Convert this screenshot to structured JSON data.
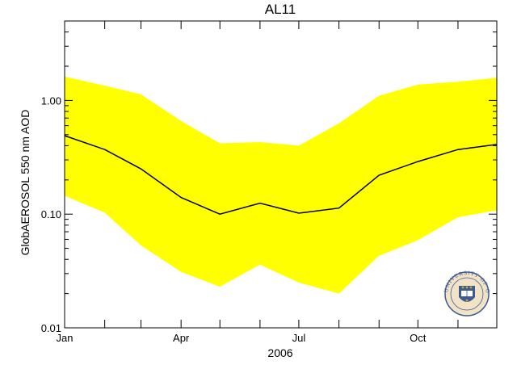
{
  "chart_data": {
    "type": "area",
    "title": "AL11",
    "xlabel": "2006",
    "ylabel": "GlobAEROSOL 550 nm AOD",
    "y_scale": "log",
    "ylim": [
      0.01,
      5
    ],
    "x_tick_labels": [
      "Jan",
      "Apr",
      "Jul",
      "Oct"
    ],
    "y_tick_labels": [
      "0.01",
      "0.10",
      "1.00"
    ],
    "x": [
      "2006-01-01",
      "2006-02-01",
      "2006-03-01",
      "2006-04-01",
      "2006-05-01",
      "2006-06-01",
      "2006-07-01",
      "2006-08-01",
      "2006-09-01",
      "2006-10-01",
      "2006-11-01",
      "2006-12-01"
    ],
    "series": [
      {
        "values": [
          0.49,
          0.37,
          0.25,
          0.14,
          0.1,
          0.125,
          0.102,
          0.113,
          0.22,
          0.29,
          0.37,
          0.41
        ]
      },
      {
        "values": [
          1.62,
          1.35,
          1.13,
          0.66,
          0.42,
          0.43,
          0.4,
          0.63,
          1.1,
          1.38,
          1.46,
          1.58
        ]
      },
      {
        "values": [
          0.145,
          0.103,
          0.053,
          0.031,
          0.023,
          0.036,
          0.025,
          0.02,
          0.043,
          0.059,
          0.094,
          0.108
        ]
      }
    ],
    "colors": {
      "band": "#ffff00",
      "line": "#000000"
    },
    "grid": false,
    "logo": {
      "name": "university-of-oxford-seal",
      "text": "UNIVERSITY OF OXFORD"
    }
  }
}
